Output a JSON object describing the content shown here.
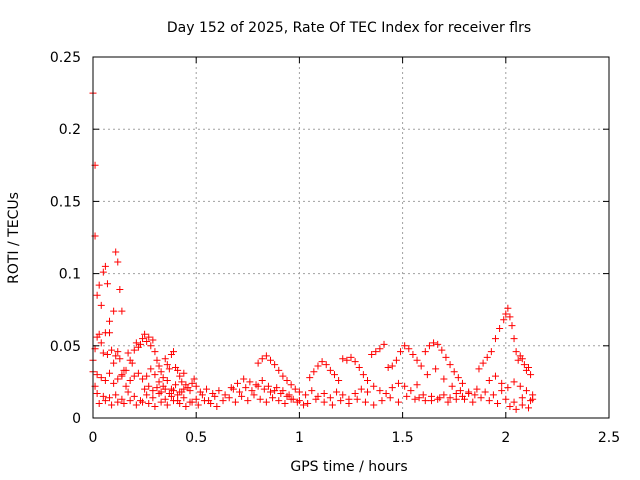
{
  "chart_data": {
    "type": "scatter",
    "title": "Day 152 of 2025, Rate Of TEC Index for receiver flrs",
    "xlabel": "GPS time / hours",
    "ylabel": "ROTI / TECUs",
    "xlim": [
      0,
      2.5
    ],
    "ylim": [
      0,
      0.25
    ],
    "grid": true,
    "marker": "+",
    "color": "#ff0000",
    "x_ticks": [
      {
        "value": 0,
        "label": "0"
      },
      {
        "value": 0.5,
        "label": "0.5"
      },
      {
        "value": 1,
        "label": "1"
      },
      {
        "value": 1.5,
        "label": "1.5"
      },
      {
        "value": 2,
        "label": "2"
      },
      {
        "value": 2.5,
        "label": "2.5"
      }
    ],
    "y_ticks": [
      {
        "value": 0,
        "label": "0"
      },
      {
        "value": 0.05,
        "label": "0.05"
      },
      {
        "value": 0.1,
        "label": "0.1"
      },
      {
        "value": 0.15,
        "label": "0.15"
      },
      {
        "value": 0.2,
        "label": "0.2"
      },
      {
        "value": 0.25,
        "label": "0.25"
      }
    ],
    "points": [
      [
        0.0,
        0.225
      ],
      [
        0.01,
        0.175
      ],
      [
        0.01,
        0.126
      ],
      [
        0.02,
        0.085
      ],
      [
        0.03,
        0.092
      ],
      [
        0.04,
        0.078
      ],
      [
        0.05,
        0.101
      ],
      [
        0.06,
        0.105
      ],
      [
        0.07,
        0.093
      ],
      [
        0.08,
        0.067
      ],
      [
        0.1,
        0.074
      ],
      [
        0.11,
        0.115
      ],
      [
        0.12,
        0.108
      ],
      [
        0.13,
        0.089
      ],
      [
        0.14,
        0.074
      ],
      [
        0.0,
        0.04
      ],
      [
        0.0,
        0.032
      ],
      [
        0.01,
        0.048
      ],
      [
        0.01,
        0.022
      ],
      [
        0.02,
        0.056
      ],
      [
        0.03,
        0.058
      ],
      [
        0.04,
        0.052
      ],
      [
        0.05,
        0.045
      ],
      [
        0.06,
        0.059
      ],
      [
        0.07,
        0.044
      ],
      [
        0.08,
        0.059
      ],
      [
        0.09,
        0.047
      ],
      [
        0.1,
        0.038
      ],
      [
        0.11,
        0.043
      ],
      [
        0.12,
        0.046
      ],
      [
        0.13,
        0.041
      ],
      [
        0.14,
        0.029
      ],
      [
        0.15,
        0.033
      ],
      [
        0.16,
        0.022
      ],
      [
        0.17,
        0.045
      ],
      [
        0.18,
        0.04
      ],
      [
        0.19,
        0.038
      ],
      [
        0.2,
        0.047
      ],
      [
        0.21,
        0.052
      ],
      [
        0.22,
        0.049
      ],
      [
        0.23,
        0.051
      ],
      [
        0.24,
        0.055
      ],
      [
        0.25,
        0.058
      ],
      [
        0.26,
        0.053
      ],
      [
        0.27,
        0.056
      ],
      [
        0.28,
        0.05
      ],
      [
        0.29,
        0.054
      ],
      [
        0.3,
        0.046
      ],
      [
        0.31,
        0.04
      ],
      [
        0.32,
        0.036
      ],
      [
        0.33,
        0.032
      ],
      [
        0.34,
        0.028
      ],
      [
        0.35,
        0.041
      ],
      [
        0.36,
        0.037
      ],
      [
        0.37,
        0.034
      ],
      [
        0.38,
        0.044
      ],
      [
        0.39,
        0.046
      ],
      [
        0.4,
        0.035
      ],
      [
        0.41,
        0.033
      ],
      [
        0.42,
        0.029
      ],
      [
        0.43,
        0.025
      ],
      [
        0.44,
        0.031
      ],
      [
        0.45,
        0.023
      ],
      [
        0.46,
        0.021
      ],
      [
        0.47,
        0.019
      ],
      [
        0.48,
        0.024
      ],
      [
        0.49,
        0.027
      ],
      [
        0.5,
        0.022
      ],
      [
        0.02,
        0.03
      ],
      [
        0.04,
        0.028
      ],
      [
        0.06,
        0.026
      ],
      [
        0.08,
        0.031
      ],
      [
        0.1,
        0.024
      ],
      [
        0.12,
        0.027
      ],
      [
        0.14,
        0.03
      ],
      [
        0.16,
        0.033
      ],
      [
        0.18,
        0.026
      ],
      [
        0.2,
        0.029
      ],
      [
        0.22,
        0.031
      ],
      [
        0.24,
        0.027
      ],
      [
        0.26,
        0.029
      ],
      [
        0.28,
        0.034
      ],
      [
        0.3,
        0.03
      ],
      [
        0.32,
        0.025
      ],
      [
        0.34,
        0.022
      ],
      [
        0.36,
        0.026
      ],
      [
        0.38,
        0.02
      ],
      [
        0.4,
        0.023
      ],
      [
        0.42,
        0.018
      ],
      [
        0.44,
        0.02
      ],
      [
        0.02,
        0.017
      ],
      [
        0.05,
        0.015
      ],
      [
        0.08,
        0.014
      ],
      [
        0.11,
        0.016
      ],
      [
        0.14,
        0.013
      ],
      [
        0.17,
        0.018
      ],
      [
        0.2,
        0.015
      ],
      [
        0.23,
        0.012
      ],
      [
        0.26,
        0.016
      ],
      [
        0.29,
        0.014
      ],
      [
        0.32,
        0.017
      ],
      [
        0.35,
        0.013
      ],
      [
        0.38,
        0.015
      ],
      [
        0.41,
        0.012
      ],
      [
        0.44,
        0.014
      ],
      [
        0.47,
        0.011
      ],
      [
        0.5,
        0.013
      ],
      [
        0.53,
        0.016
      ],
      [
        0.56,
        0.012
      ],
      [
        0.59,
        0.015
      ],
      [
        0.03,
        0.01
      ],
      [
        0.06,
        0.012
      ],
      [
        0.09,
        0.009
      ],
      [
        0.12,
        0.011
      ],
      [
        0.15,
        0.01
      ],
      [
        0.18,
        0.012
      ],
      [
        0.21,
        0.009
      ],
      [
        0.24,
        0.011
      ],
      [
        0.27,
        0.01
      ],
      [
        0.3,
        0.008
      ],
      [
        0.33,
        0.011
      ],
      [
        0.36,
        0.009
      ],
      [
        0.39,
        0.012
      ],
      [
        0.42,
        0.01
      ],
      [
        0.45,
        0.008
      ],
      [
        0.48,
        0.011
      ],
      [
        0.51,
        0.009
      ],
      [
        0.54,
        0.012
      ],
      [
        0.57,
        0.01
      ],
      [
        0.6,
        0.008
      ],
      [
        0.52,
        0.018
      ],
      [
        0.55,
        0.02
      ],
      [
        0.58,
        0.017
      ],
      [
        0.61,
        0.019
      ],
      [
        0.64,
        0.016
      ],
      [
        0.67,
        0.021
      ],
      [
        0.7,
        0.024
      ],
      [
        0.73,
        0.027
      ],
      [
        0.76,
        0.025
      ],
      [
        0.79,
        0.023
      ],
      [
        0.82,
        0.026
      ],
      [
        0.85,
        0.022
      ],
      [
        0.88,
        0.019
      ],
      [
        0.91,
        0.017
      ],
      [
        0.94,
        0.015
      ],
      [
        0.97,
        0.013
      ],
      [
        0.63,
        0.012
      ],
      [
        0.66,
        0.014
      ],
      [
        0.69,
        0.011
      ],
      [
        0.72,
        0.015
      ],
      [
        0.75,
        0.012
      ],
      [
        0.78,
        0.016
      ],
      [
        0.81,
        0.013
      ],
      [
        0.84,
        0.011
      ],
      [
        0.87,
        0.014
      ],
      [
        0.9,
        0.012
      ],
      [
        0.93,
        0.01
      ],
      [
        0.96,
        0.013
      ],
      [
        0.99,
        0.011
      ],
      [
        1.02,
        0.009
      ],
      [
        0.8,
        0.038
      ],
      [
        0.82,
        0.041
      ],
      [
        0.84,
        0.043
      ],
      [
        0.86,
        0.04
      ],
      [
        0.88,
        0.037
      ],
      [
        0.9,
        0.033
      ],
      [
        0.92,
        0.029
      ],
      [
        0.94,
        0.026
      ],
      [
        0.96,
        0.023
      ],
      [
        0.98,
        0.02
      ],
      [
        0.68,
        0.02
      ],
      [
        0.71,
        0.018
      ],
      [
        0.74,
        0.021
      ],
      [
        0.77,
        0.019
      ],
      [
        0.8,
        0.022
      ],
      [
        0.83,
        0.02
      ],
      [
        0.86,
        0.018
      ],
      [
        0.89,
        0.021
      ],
      [
        0.92,
        0.019
      ],
      [
        0.95,
        0.016
      ],
      [
        1.0,
        0.018
      ],
      [
        1.03,
        0.016
      ],
      [
        1.06,
        0.019
      ],
      [
        1.09,
        0.015
      ],
      [
        1.12,
        0.017
      ],
      [
        1.15,
        0.014
      ],
      [
        1.18,
        0.018
      ],
      [
        1.21,
        0.016
      ],
      [
        1.24,
        0.013
      ],
      [
        1.27,
        0.017
      ],
      [
        1.0,
        0.012
      ],
      [
        1.04,
        0.01
      ],
      [
        1.08,
        0.013
      ],
      [
        1.12,
        0.011
      ],
      [
        1.16,
        0.009
      ],
      [
        1.2,
        0.012
      ],
      [
        1.24,
        0.01
      ],
      [
        1.28,
        0.013
      ],
      [
        1.32,
        0.011
      ],
      [
        1.36,
        0.009
      ],
      [
        1.05,
        0.028
      ],
      [
        1.07,
        0.032
      ],
      [
        1.09,
        0.036
      ],
      [
        1.11,
        0.039
      ],
      [
        1.13,
        0.037
      ],
      [
        1.15,
        0.033
      ],
      [
        1.17,
        0.03
      ],
      [
        1.19,
        0.026
      ],
      [
        1.21,
        0.041
      ],
      [
        1.23,
        0.04
      ],
      [
        1.25,
        0.042
      ],
      [
        1.27,
        0.039
      ],
      [
        1.29,
        0.035
      ],
      [
        1.31,
        0.03
      ],
      [
        1.33,
        0.026
      ],
      [
        1.35,
        0.044
      ],
      [
        1.37,
        0.046
      ],
      [
        1.39,
        0.048
      ],
      [
        1.41,
        0.051
      ],
      [
        1.43,
        0.035
      ],
      [
        1.3,
        0.02
      ],
      [
        1.33,
        0.018
      ],
      [
        1.36,
        0.022
      ],
      [
        1.39,
        0.019
      ],
      [
        1.42,
        0.017
      ],
      [
        1.45,
        0.021
      ],
      [
        1.48,
        0.024
      ],
      [
        1.51,
        0.022
      ],
      [
        1.54,
        0.019
      ],
      [
        1.57,
        0.023
      ],
      [
        1.4,
        0.012
      ],
      [
        1.44,
        0.014
      ],
      [
        1.48,
        0.011
      ],
      [
        1.52,
        0.015
      ],
      [
        1.56,
        0.013
      ],
      [
        1.6,
        0.016
      ],
      [
        1.64,
        0.012
      ],
      [
        1.68,
        0.014
      ],
      [
        1.72,
        0.011
      ],
      [
        1.76,
        0.013
      ],
      [
        1.45,
        0.036
      ],
      [
        1.47,
        0.04
      ],
      [
        1.49,
        0.046
      ],
      [
        1.51,
        0.05
      ],
      [
        1.53,
        0.048
      ],
      [
        1.55,
        0.044
      ],
      [
        1.57,
        0.04
      ],
      [
        1.59,
        0.036
      ],
      [
        1.61,
        0.046
      ],
      [
        1.63,
        0.05
      ],
      [
        1.65,
        0.052
      ],
      [
        1.67,
        0.051
      ],
      [
        1.69,
        0.047
      ],
      [
        1.71,
        0.042
      ],
      [
        1.73,
        0.037
      ],
      [
        1.75,
        0.032
      ],
      [
        1.77,
        0.028
      ],
      [
        1.79,
        0.024
      ],
      [
        1.62,
        0.03
      ],
      [
        1.66,
        0.034
      ],
      [
        1.7,
        0.027
      ],
      [
        1.74,
        0.022
      ],
      [
        1.78,
        0.019
      ],
      [
        1.82,
        0.017
      ],
      [
        1.86,
        0.02
      ],
      [
        1.9,
        0.018
      ],
      [
        1.94,
        0.016
      ],
      [
        1.98,
        0.019
      ],
      [
        1.8,
        0.013
      ],
      [
        1.84,
        0.011
      ],
      [
        1.88,
        0.014
      ],
      [
        1.92,
        0.012
      ],
      [
        1.96,
        0.01
      ],
      [
        2.0,
        0.013
      ],
      [
        2.04,
        0.011
      ],
      [
        2.08,
        0.014
      ],
      [
        2.12,
        0.012
      ],
      [
        1.87,
        0.034
      ],
      [
        1.89,
        0.038
      ],
      [
        1.91,
        0.042
      ],
      [
        1.93,
        0.046
      ],
      [
        1.95,
        0.055
      ],
      [
        1.97,
        0.062
      ],
      [
        1.99,
        0.068
      ],
      [
        2.0,
        0.072
      ],
      [
        2.01,
        0.076
      ],
      [
        2.02,
        0.07
      ],
      [
        2.03,
        0.064
      ],
      [
        2.04,
        0.055
      ],
      [
        2.05,
        0.046
      ],
      [
        2.06,
        0.04
      ],
      [
        2.07,
        0.043
      ],
      [
        2.08,
        0.041
      ],
      [
        2.09,
        0.037
      ],
      [
        2.1,
        0.033
      ],
      [
        2.11,
        0.035
      ],
      [
        2.12,
        0.03
      ],
      [
        1.92,
        0.026
      ],
      [
        1.95,
        0.029
      ],
      [
        1.98,
        0.024
      ],
      [
        2.01,
        0.021
      ],
      [
        2.04,
        0.025
      ],
      [
        2.07,
        0.022
      ],
      [
        2.1,
        0.019
      ],
      [
        2.13,
        0.016
      ],
      [
        2.02,
        0.008
      ],
      [
        2.05,
        0.006
      ],
      [
        2.08,
        0.009
      ],
      [
        2.11,
        0.007
      ],
      [
        2.13,
        0.013
      ],
      [
        1.58,
        0.014
      ],
      [
        1.61,
        0.012
      ],
      [
        1.64,
        0.015
      ],
      [
        1.67,
        0.013
      ],
      [
        1.7,
        0.016
      ],
      [
        1.73,
        0.014
      ],
      [
        1.76,
        0.017
      ],
      [
        1.79,
        0.015
      ],
      [
        1.82,
        0.018
      ],
      [
        1.85,
        0.016
      ],
      [
        0.25,
        0.02
      ],
      [
        0.27,
        0.022
      ],
      [
        0.29,
        0.019
      ],
      [
        0.31,
        0.021
      ],
      [
        0.33,
        0.018
      ],
      [
        0.35,
        0.02
      ],
      [
        0.37,
        0.017
      ],
      [
        0.39,
        0.019
      ],
      [
        0.41,
        0.016
      ],
      [
        0.43,
        0.018
      ]
    ]
  }
}
